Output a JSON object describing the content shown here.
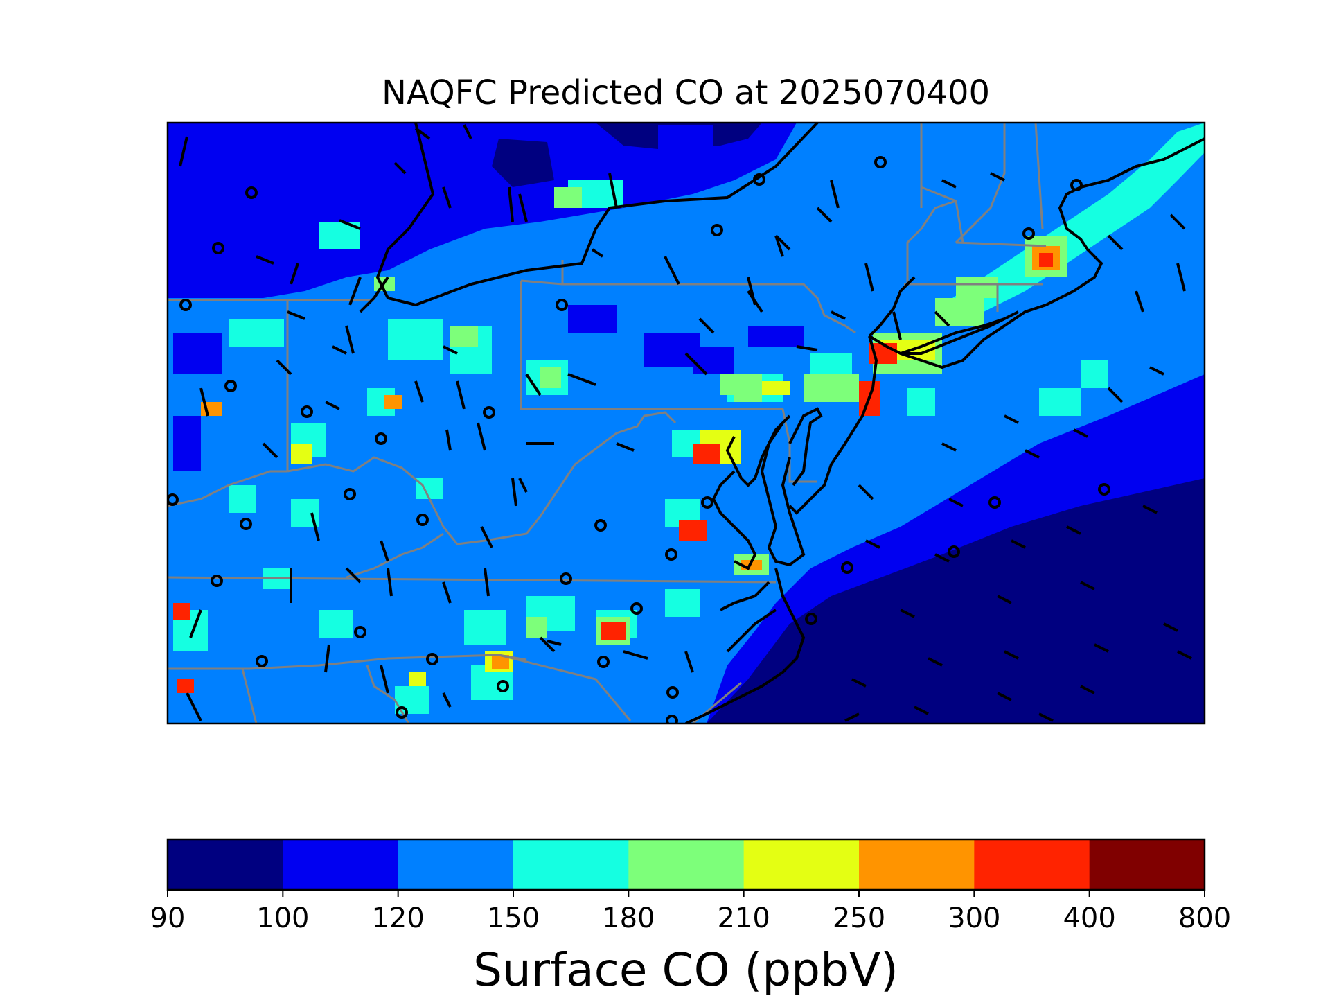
{
  "title": "NAQFC Predicted CO at 2025070400",
  "colorbar": {
    "label": "Surface CO (ppbV)",
    "ticks": [
      "90",
      "100",
      "120",
      "150",
      "180",
      "210",
      "250",
      "300",
      "400",
      "800"
    ],
    "colors": [
      "#000080",
      "#0000f1",
      "#0080ff",
      "#15ffe1",
      "#7dff7a",
      "#e4ff13",
      "#ff9400",
      "#ff2300",
      "#800000"
    ]
  },
  "map": {
    "ocean_color": "#000080",
    "colors": {
      "state_borders": "#808080",
      "coastline": "#000000",
      "wind_barbs": "#000000",
      "calm_markers": "#000000"
    }
  }
}
